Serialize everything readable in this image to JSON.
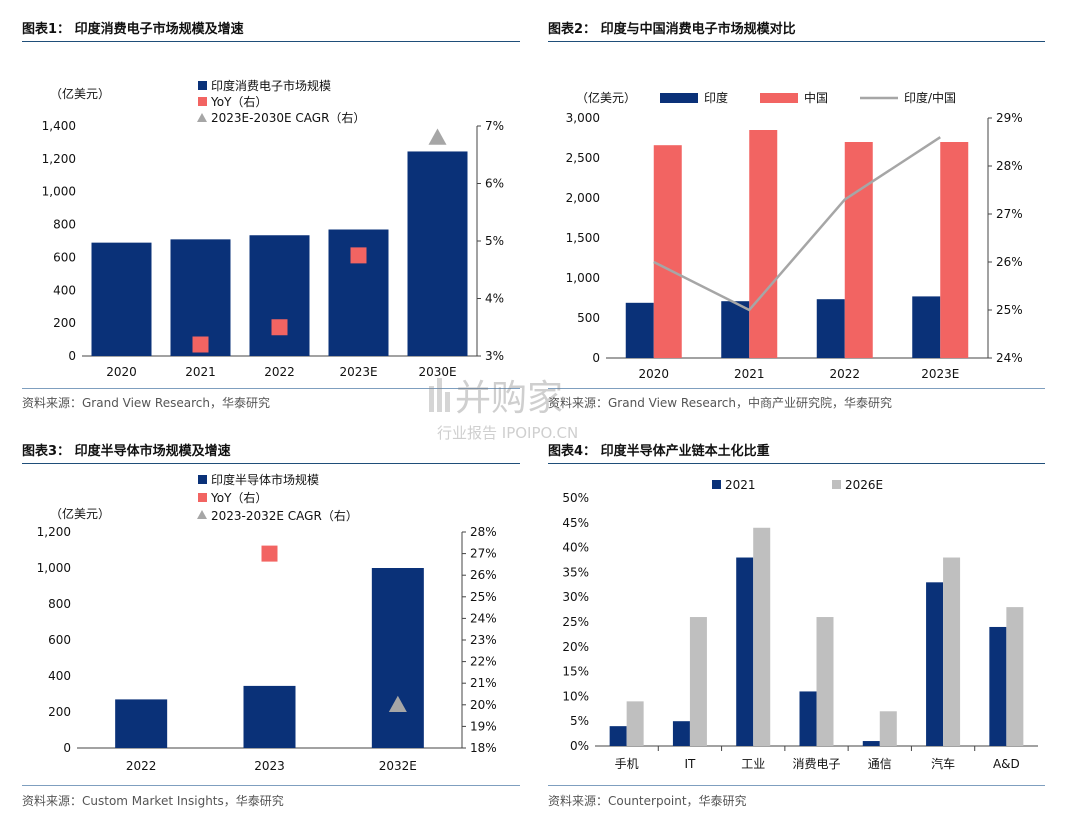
{
  "panels": {
    "p1": {
      "title": "图表1： 印度消费电子市场规模及增速",
      "source": "资料来源：Grand View Research，华泰研究"
    },
    "p2": {
      "title": "图表2： 印度与中国消费电子市场规模对比",
      "source": "资料来源：Grand View Research，中商产业研究院，华泰研究"
    },
    "p3": {
      "title": "图表3： 印度半导体市场规模及增速",
      "source": "资料来源：Custom Market Insights，华泰研究"
    },
    "p4": {
      "title": "图表4： 印度半导体产业链本土化比重",
      "source": "资料来源：Counterpoint，华泰研究"
    }
  },
  "watermark": {
    "line1": "并购家",
    "line2": "行业报告 IPOIPO.CN"
  },
  "chart_data": [
    {
      "type": "bar",
      "unit": "（亿美元）",
      "categories": [
        "2020",
        "2021",
        "2022",
        "2023E",
        "2030E"
      ],
      "series": [
        {
          "name": "印度消费电子市场规模",
          "axis": "left",
          "values": [
            690,
            710,
            735,
            770,
            1245
          ]
        },
        {
          "name": "YoY（右）",
          "axis": "right",
          "marker": "square",
          "values": [
            null,
            3.2,
            3.5,
            4.75,
            null
          ]
        },
        {
          "name": "2023E-2030E CAGR（右）",
          "axis": "right",
          "marker": "triangle",
          "values": [
            null,
            null,
            null,
            null,
            6.8
          ]
        }
      ],
      "yticks_left": [
        "0",
        "200",
        "400",
        "600",
        "800",
        "1,000",
        "1,200",
        "1,400"
      ],
      "yticks_right": [
        "3%",
        "4%",
        "5%",
        "6%",
        "7%"
      ],
      "ylim": [
        0,
        1400
      ],
      "ylim_right": [
        3,
        7
      ],
      "colors": {
        "bar": "#0a3178",
        "yoy": "#f26462",
        "cagr": "#a6a6a6"
      }
    },
    {
      "type": "bar",
      "unit": "（亿美元）",
      "categories": [
        "2020",
        "2021",
        "2022",
        "2023E"
      ],
      "series": [
        {
          "name": "印度",
          "axis": "left",
          "values": [
            690,
            710,
            735,
            770
          ]
        },
        {
          "name": "中国",
          "axis": "left",
          "values": [
            2660,
            2850,
            2700,
            2700
          ]
        },
        {
          "name": "印度/中国",
          "axis": "right",
          "type": "line",
          "values": [
            26.0,
            25.0,
            27.3,
            28.6
          ]
        }
      ],
      "yticks_left": [
        "0",
        "500",
        "1,000",
        "1,500",
        "2,000",
        "2,500",
        "3,000"
      ],
      "yticks_right": [
        "24%",
        "25%",
        "26%",
        "27%",
        "28%",
        "29%"
      ],
      "ylim": [
        0,
        3000
      ],
      "ylim_right": [
        24,
        29
      ],
      "colors": {
        "india": "#0a3178",
        "china": "#f26462",
        "ratio": "#a6a6a6"
      }
    },
    {
      "type": "bar",
      "unit": "（亿美元）",
      "categories": [
        "2022",
        "2023",
        "2032E"
      ],
      "series": [
        {
          "name": "印度半导体市场规模",
          "axis": "left",
          "values": [
            270,
            345,
            1000
          ]
        },
        {
          "name": "YoY（右）",
          "axis": "right",
          "marker": "square",
          "values": [
            null,
            27.0,
            null
          ]
        },
        {
          "name": "2023-2032E CAGR（右）",
          "axis": "right",
          "marker": "triangle",
          "values": [
            null,
            null,
            20.0
          ]
        }
      ],
      "yticks_left": [
        "0",
        "200",
        "400",
        "600",
        "800",
        "1,000",
        "1,200"
      ],
      "yticks_right": [
        "18%",
        "19%",
        "20%",
        "21%",
        "22%",
        "23%",
        "24%",
        "25%",
        "26%",
        "27%",
        "28%"
      ],
      "ylim": [
        0,
        1200
      ],
      "ylim_right": [
        18,
        28
      ],
      "colors": {
        "bar": "#0a3178",
        "yoy": "#f26462",
        "cagr": "#a6a6a6"
      }
    },
    {
      "type": "bar",
      "categories": [
        "手机",
        "IT",
        "工业",
        "消费电子",
        "通信",
        "汽车",
        "A&D"
      ],
      "series": [
        {
          "name": "2021",
          "values": [
            4,
            5,
            38,
            11,
            1,
            33,
            24
          ]
        },
        {
          "name": "2026E",
          "values": [
            9,
            26,
            44,
            26,
            7,
            38,
            28
          ]
        }
      ],
      "yticks_left": [
        "0%",
        "5%",
        "10%",
        "15%",
        "20%",
        "25%",
        "30%",
        "35%",
        "40%",
        "45%",
        "50%"
      ],
      "ylim": [
        0,
        50
      ],
      "colors": {
        "s2021": "#0a3178",
        "s2026": "#bfbfbf"
      }
    }
  ]
}
